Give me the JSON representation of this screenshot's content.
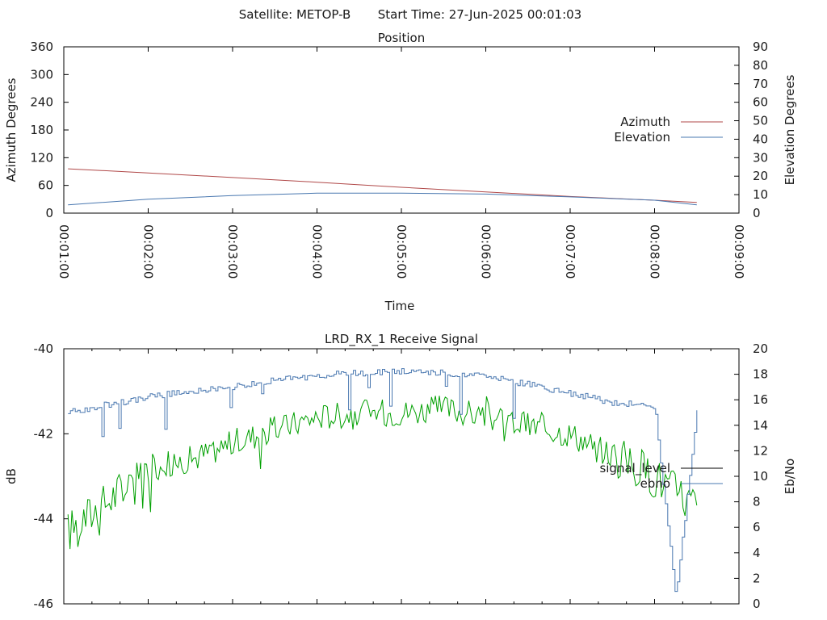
{
  "header": {
    "satellite_text": "Satellite: METOP-B",
    "start_time_text": "Start Time: 27-Jun-2025 00:01:03"
  },
  "chart_data": [
    {
      "type": "line",
      "title": "Position",
      "xlabel": "Time",
      "ylabel_left": "Azimuth Degrees",
      "ylabel_right": "Elevation Degrees",
      "xlim": [
        "00:01:00",
        "00:09:00"
      ],
      "x_ticks": [
        "00:01:00",
        "00:02:00",
        "00:03:00",
        "00:04:00",
        "00:05:00",
        "00:06:00",
        "00:07:00",
        "00:08:00",
        "00:09:00"
      ],
      "ylim_left": [
        0,
        360
      ],
      "y_ticks_left": [
        "0",
        "60",
        "120",
        "180",
        "240",
        "300",
        "360"
      ],
      "ylim_right": [
        0,
        90
      ],
      "y_ticks_right": [
        "0",
        "10",
        "20",
        "30",
        "40",
        "50",
        "60",
        "70",
        "80",
        "90"
      ],
      "legend_position": "right",
      "series": [
        {
          "name": "Azimuth",
          "axis": "left",
          "color": "#b04848",
          "x": [
            "00:01:03",
            "00:02:00",
            "00:03:00",
            "00:04:00",
            "00:05:00",
            "00:06:00",
            "00:07:00",
            "00:08:00",
            "00:08:30"
          ],
          "values": [
            96,
            87,
            77,
            67,
            56,
            46,
            36,
            28,
            23
          ]
        },
        {
          "name": "Elevation",
          "axis": "right",
          "color": "#4a78b0",
          "x": [
            "00:01:03",
            "00:02:00",
            "00:03:00",
            "00:04:00",
            "00:05:00",
            "00:06:00",
            "00:07:00",
            "00:08:00",
            "00:08:30"
          ],
          "values": [
            4.5,
            7.5,
            9.5,
            10.8,
            10.8,
            10.3,
            8.8,
            7,
            4.5
          ]
        }
      ]
    },
    {
      "type": "line",
      "title": "LRD_RX_1 Receive Signal",
      "ylabel_left": "dB",
      "ylabel_right": "Eb/No",
      "ylim_left": [
        -46,
        -40
      ],
      "y_ticks_left": [
        "-46",
        "-44",
        "-42",
        "-40"
      ],
      "ylim_right": [
        0,
        20
      ],
      "y_ticks_right": [
        "0",
        "2",
        "4",
        "6",
        "8",
        "10",
        "12",
        "14",
        "16",
        "18",
        "20"
      ],
      "legend_position": "right",
      "series": [
        {
          "name": "signal_level",
          "axis": "left",
          "color": "#00a000",
          "x": [
            "00:01:03",
            "00:01:30",
            "00:02:00",
            "00:02:30",
            "00:03:00",
            "00:03:30",
            "00:04:00",
            "00:04:30",
            "00:05:00",
            "00:05:30",
            "00:06:00",
            "00:06:30",
            "00:07:00",
            "00:07:30",
            "00:08:00",
            "00:08:30"
          ],
          "values": [
            -44.3,
            -43.6,
            -42.8,
            -42.6,
            -42.2,
            -41.9,
            -41.6,
            -41.5,
            -41.5,
            -41.4,
            -41.6,
            -41.8,
            -42.0,
            -42.5,
            -43.0,
            -43.7
          ]
        },
        {
          "name": "ebno",
          "axis": "right",
          "color": "#4a78b0",
          "x": [
            "00:01:03",
            "00:01:30",
            "00:02:00",
            "00:02:30",
            "00:03:00",
            "00:03:30",
            "00:04:00",
            "00:04:30",
            "00:05:00",
            "00:05:30",
            "00:06:00",
            "00:06:30",
            "00:07:00",
            "00:07:30",
            "00:08:00",
            "00:08:15",
            "00:08:30"
          ],
          "values": [
            15.0,
            15.6,
            16.2,
            16.7,
            17.0,
            17.5,
            17.9,
            18.1,
            18.2,
            18.1,
            17.8,
            17.2,
            16.5,
            15.8,
            15.5,
            0.5,
            15.2
          ]
        }
      ]
    }
  ]
}
